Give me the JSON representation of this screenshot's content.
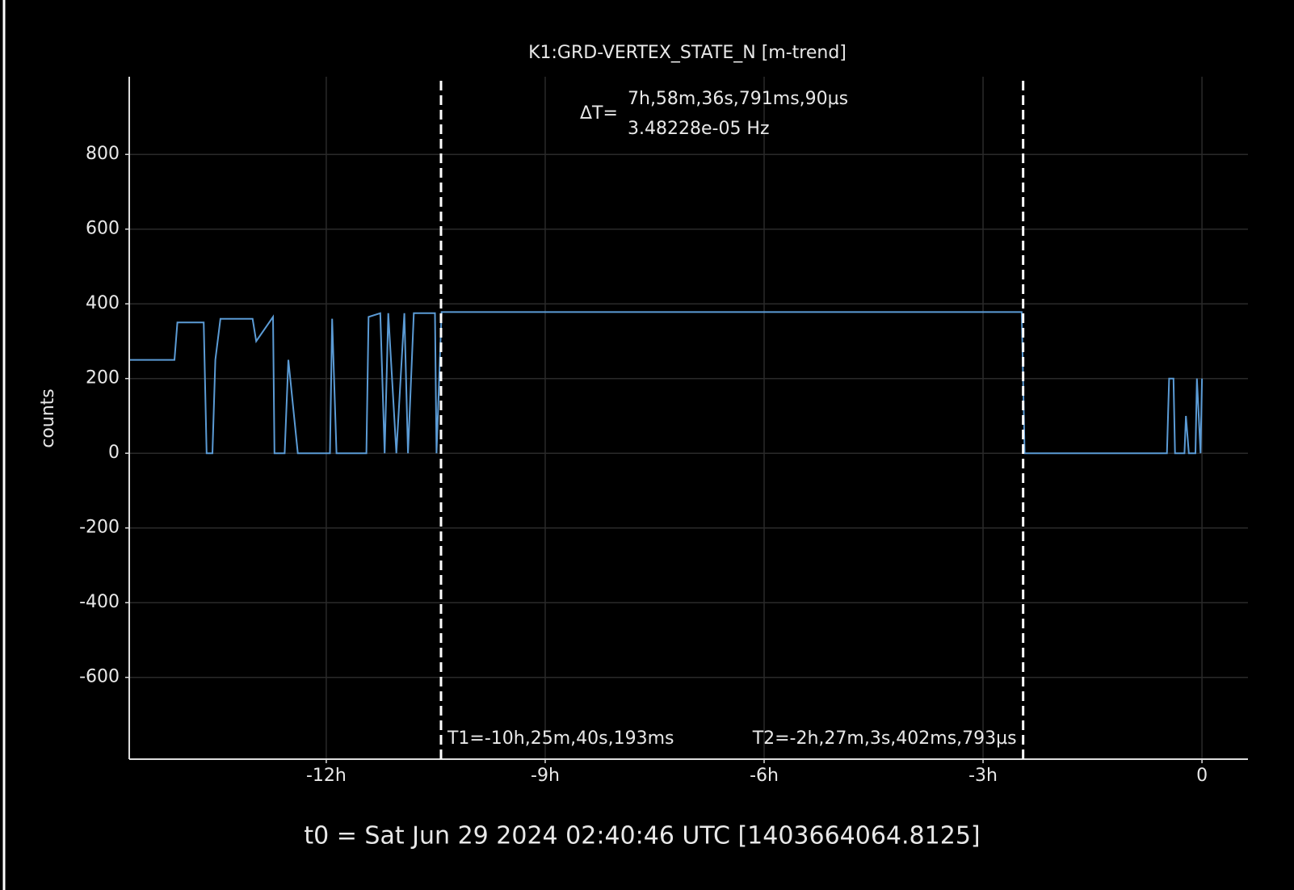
{
  "chart_data": {
    "type": "line",
    "title": "K1:GRD-VERTEX_STATE_N [m-trend]",
    "ylabel": "counts",
    "footer": "t0 = Sat Jun 29 2024 02:40:46 UTC [1403664064.8125]",
    "xlim": [
      -14.7,
      0.63
    ],
    "xticks": [
      {
        "value": -12,
        "label": "-12h"
      },
      {
        "value": -9,
        "label": "-9h"
      },
      {
        "value": -6,
        "label": "-6h"
      },
      {
        "value": -3,
        "label": "-3h"
      },
      {
        "value": 0,
        "label": "0"
      }
    ],
    "ylim": [
      -819,
      1008
    ],
    "yticks": [
      -600,
      -400,
      -200,
      0,
      200,
      400,
      600,
      800
    ],
    "grid": true,
    "series": [
      {
        "color": "#5b9bd5",
        "x": [
          -14.69,
          -14.08,
          -14.04,
          -13.68,
          -13.64,
          -13.56,
          -13.52,
          -13.45,
          -13.01,
          -12.96,
          -12.73,
          -12.71,
          -12.57,
          -12.52,
          -12.39,
          -11.95,
          -11.92,
          -11.86,
          -11.45,
          -11.42,
          -11.26,
          -11.2,
          -11.15,
          -11.04,
          -10.93,
          -10.88,
          -10.8,
          -10.51,
          -10.49,
          -10.42,
          -2.47,
          -2.43,
          -0.48,
          -0.45,
          -0.39,
          -0.37,
          -0.24,
          -0.22,
          -0.18,
          -0.09,
          -0.07,
          -0.02,
          0
        ],
        "values": [
          250,
          250,
          350,
          350,
          0,
          0,
          250,
          360,
          360,
          300,
          365,
          0,
          0,
          250,
          0,
          0,
          360,
          0,
          0,
          365,
          375,
          0,
          375,
          0,
          375,
          0,
          375,
          375,
          0,
          378,
          378,
          0,
          0,
          200,
          200,
          0,
          0,
          100,
          0,
          0,
          200,
          0,
          200
        ]
      }
    ],
    "cursors": [
      {
        "x": -10.42783,
        "label": "T1=-10h,25m,40s,193ms"
      },
      {
        "x": -2.45095,
        "label": "T2=-2h,27m,3s,402ms,793µs"
      }
    ],
    "delta": {
      "prefix": "ΔT=",
      "time": "7h,58m,36s,791ms,90µs",
      "freq": "3.48228e-05 Hz"
    }
  }
}
